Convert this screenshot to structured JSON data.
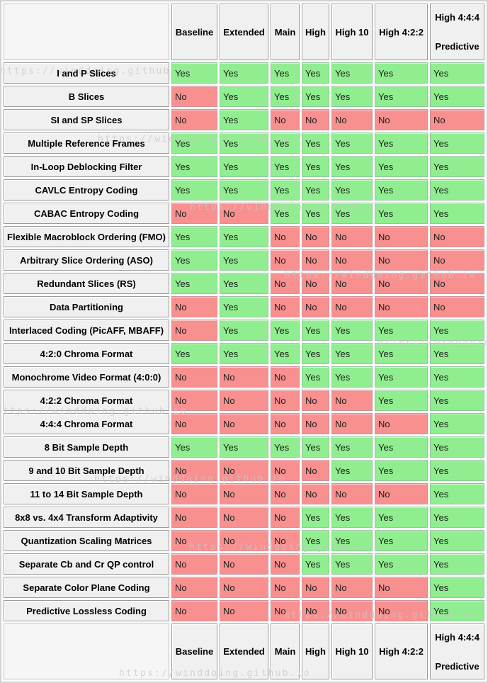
{
  "chart_data": {
    "type": "table",
    "columns": [
      {
        "label": "Baseline",
        "sublabel": ""
      },
      {
        "label": "Extended",
        "sublabel": ""
      },
      {
        "label": "Main",
        "sublabel": ""
      },
      {
        "label": "High",
        "sublabel": ""
      },
      {
        "label": "High 10",
        "sublabel": ""
      },
      {
        "label": "High 4:2:2",
        "sublabel": ""
      },
      {
        "label": "High 4:4:4",
        "sublabel": "Predictive"
      }
    ],
    "header_repeated_at_bottom": true,
    "value_labels": {
      "supported": "Yes",
      "unsupported": "No"
    },
    "cell_colors": {
      "yes_bg": "#90ee90",
      "no_bg": "#f89090",
      "header_bg": "#f0f0f0"
    },
    "rows": [
      {
        "feature": "I and P Slices",
        "values": [
          "Yes",
          "Yes",
          "Yes",
          "Yes",
          "Yes",
          "Yes",
          "Yes"
        ]
      },
      {
        "feature": "B Slices",
        "values": [
          "No",
          "Yes",
          "Yes",
          "Yes",
          "Yes",
          "Yes",
          "Yes"
        ]
      },
      {
        "feature": "SI and SP Slices",
        "values": [
          "No",
          "Yes",
          "No",
          "No",
          "No",
          "No",
          "No"
        ]
      },
      {
        "feature": "Multiple Reference Frames",
        "values": [
          "Yes",
          "Yes",
          "Yes",
          "Yes",
          "Yes",
          "Yes",
          "Yes"
        ]
      },
      {
        "feature": "In-Loop Deblocking Filter",
        "values": [
          "Yes",
          "Yes",
          "Yes",
          "Yes",
          "Yes",
          "Yes",
          "Yes"
        ]
      },
      {
        "feature": "CAVLC Entropy Coding",
        "values": [
          "Yes",
          "Yes",
          "Yes",
          "Yes",
          "Yes",
          "Yes",
          "Yes"
        ]
      },
      {
        "feature": "CABAC Entropy Coding",
        "values": [
          "No",
          "No",
          "Yes",
          "Yes",
          "Yes",
          "Yes",
          "Yes"
        ]
      },
      {
        "feature": "Flexible Macroblock Ordering (FMO)",
        "values": [
          "Yes",
          "Yes",
          "No",
          "No",
          "No",
          "No",
          "No"
        ]
      },
      {
        "feature": "Arbitrary Slice Ordering (ASO)",
        "values": [
          "Yes",
          "Yes",
          "No",
          "No",
          "No",
          "No",
          "No"
        ]
      },
      {
        "feature": "Redundant Slices (RS)",
        "values": [
          "Yes",
          "Yes",
          "No",
          "No",
          "No",
          "No",
          "No"
        ]
      },
      {
        "feature": "Data Partitioning",
        "values": [
          "No",
          "Yes",
          "No",
          "No",
          "No",
          "No",
          "No"
        ]
      },
      {
        "feature": "Interlaced Coding (PicAFF, MBAFF)",
        "values": [
          "No",
          "Yes",
          "Yes",
          "Yes",
          "Yes",
          "Yes",
          "Yes"
        ]
      },
      {
        "feature": "4:2:0 Chroma Format",
        "values": [
          "Yes",
          "Yes",
          "Yes",
          "Yes",
          "Yes",
          "Yes",
          "Yes"
        ]
      },
      {
        "feature": "Monochrome Video Format (4:0:0)",
        "values": [
          "No",
          "No",
          "No",
          "Yes",
          "Yes",
          "Yes",
          "Yes"
        ]
      },
      {
        "feature": "4:2:2 Chroma Format",
        "values": [
          "No",
          "No",
          "No",
          "No",
          "No",
          "Yes",
          "Yes"
        ]
      },
      {
        "feature": "4:4:4 Chroma Format",
        "values": [
          "No",
          "No",
          "No",
          "No",
          "No",
          "No",
          "Yes"
        ]
      },
      {
        "feature": "8 Bit Sample Depth",
        "values": [
          "Yes",
          "Yes",
          "Yes",
          "Yes",
          "Yes",
          "Yes",
          "Yes"
        ]
      },
      {
        "feature": "9 and 10 Bit Sample Depth",
        "values": [
          "No",
          "No",
          "No",
          "No",
          "Yes",
          "Yes",
          "Yes"
        ]
      },
      {
        "feature": "11 to 14 Bit Sample Depth",
        "values": [
          "No",
          "No",
          "No",
          "No",
          "No",
          "No",
          "Yes"
        ]
      },
      {
        "feature": "8x8 vs. 4x4 Transform Adaptivity",
        "values": [
          "No",
          "No",
          "No",
          "Yes",
          "Yes",
          "Yes",
          "Yes"
        ]
      },
      {
        "feature": "Quantization Scaling Matrices",
        "values": [
          "No",
          "No",
          "No",
          "Yes",
          "Yes",
          "Yes",
          "Yes"
        ]
      },
      {
        "feature": "Separate Cb and Cr QP control",
        "values": [
          "No",
          "No",
          "No",
          "Yes",
          "Yes",
          "Yes",
          "Yes"
        ]
      },
      {
        "feature": "Separate Color Plane Coding",
        "values": [
          "No",
          "No",
          "No",
          "No",
          "No",
          "No",
          "Yes"
        ]
      },
      {
        "feature": "Predictive Lossless Coding",
        "values": [
          "No",
          "No",
          "No",
          "No",
          "No",
          "No",
          "Yes"
        ]
      }
    ]
  },
  "watermark": {
    "text": "https://winddoing.github.io",
    "color": "#c8c8c8"
  }
}
